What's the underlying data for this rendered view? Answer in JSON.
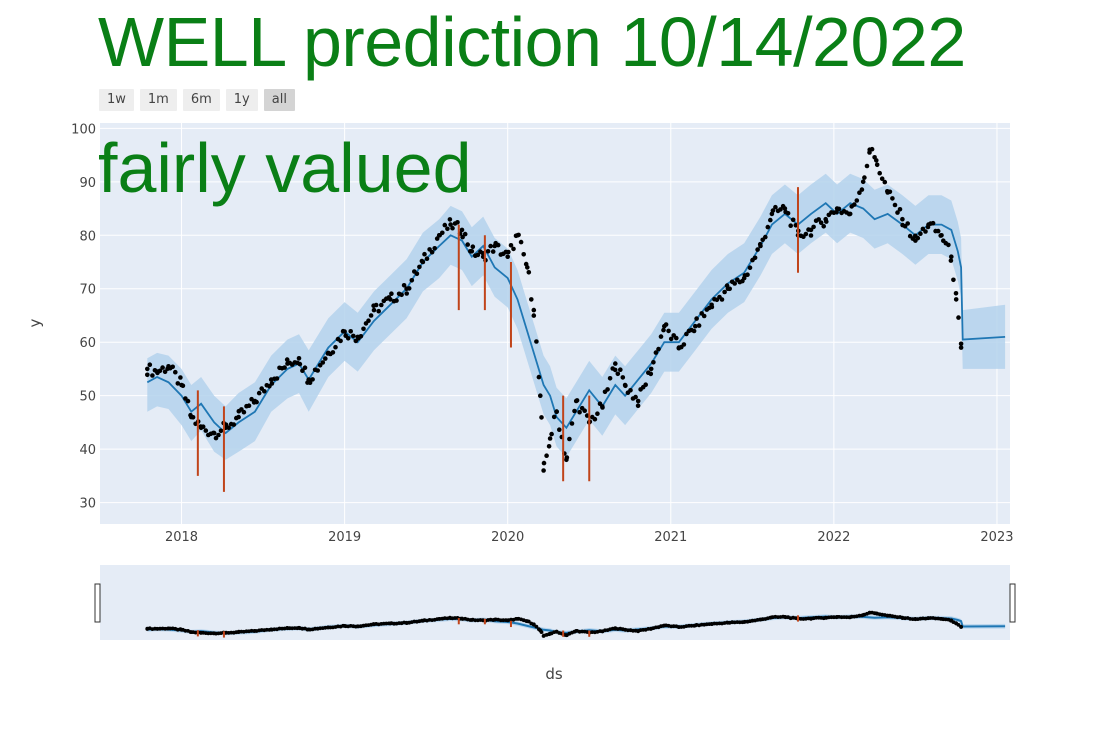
{
  "title": "WELL prediction 10/14/2022",
  "verdict": "fairly valued",
  "range_buttons": [
    {
      "label": "1w",
      "active": false
    },
    {
      "label": "1m",
      "active": false
    },
    {
      "label": "6m",
      "active": false
    },
    {
      "label": "1y",
      "active": false
    },
    {
      "label": "all",
      "active": true
    }
  ],
  "colors": {
    "title": "#0a7f16",
    "plot_bg": "#e5ecf6",
    "band": "#b4d2ec",
    "forecast_line": "#1f77b4",
    "actual_points": "#000000",
    "changepoints": "#c0441a"
  },
  "chart_data": {
    "type": "line",
    "xlabel": "ds",
    "ylabel": "y",
    "xlim": [
      2017.5,
      2023.08
    ],
    "ylim": [
      26,
      101
    ],
    "x_ticks": [
      "2018",
      "2019",
      "2020",
      "2021",
      "2022",
      "2023"
    ],
    "y_ticks": [
      "30",
      "40",
      "50",
      "60",
      "70",
      "80",
      "90",
      "100"
    ],
    "grid": true,
    "rangeslider": true,
    "forecast": {
      "name": "yhat",
      "x": [
        2017.79,
        2017.85,
        2017.92,
        2018.0,
        2018.06,
        2018.12,
        2018.2,
        2018.27,
        2018.35,
        2018.45,
        2018.55,
        2018.65,
        2018.72,
        2018.78,
        2018.9,
        2019.0,
        2019.08,
        2019.18,
        2019.28,
        2019.38,
        2019.48,
        2019.58,
        2019.65,
        2019.72,
        2019.78,
        2019.85,
        2019.92,
        2020.0,
        2020.06,
        2020.12,
        2020.18,
        2020.22,
        2020.26,
        2020.3,
        2020.36,
        2020.42,
        2020.5,
        2020.58,
        2020.66,
        2020.72,
        2020.8,
        2020.88,
        2020.96,
        2021.05,
        2021.15,
        2021.25,
        2021.35,
        2021.45,
        2021.55,
        2021.62,
        2021.7,
        2021.78,
        2021.86,
        2021.95,
        2022.02,
        2022.1,
        2022.18,
        2022.25,
        2022.33,
        2022.42,
        2022.5,
        2022.58,
        2022.66,
        2022.72,
        2022.76,
        2022.78,
        2022.79,
        2023.05
      ],
      "y": [
        52.5,
        53.5,
        52.5,
        50.0,
        47.0,
        48.5,
        45.0,
        43.0,
        45.0,
        47.0,
        52.0,
        55.0,
        56.0,
        53.0,
        59.0,
        62.0,
        60.0,
        64.0,
        67.0,
        70.0,
        75.0,
        78.0,
        80.0,
        79.0,
        76.0,
        78.0,
        74.0,
        72.0,
        68.0,
        62.0,
        56.0,
        52.0,
        50.0,
        46.0,
        44.0,
        47.0,
        51.0,
        48.0,
        52.0,
        50.0,
        53.0,
        56.0,
        60.0,
        60.0,
        64.0,
        68.0,
        71.0,
        73.0,
        78.0,
        82.0,
        84.0,
        82.0,
        84.0,
        86.0,
        84.0,
        86.0,
        85.0,
        83.0,
        84.0,
        82.0,
        80.0,
        82.0,
        82.0,
        81.0,
        77.0,
        74.0,
        60.5,
        61.0
      ]
    },
    "interval": {
      "name": "uncertainty interval",
      "x": [
        2017.79,
        2017.85,
        2017.92,
        2018.0,
        2018.06,
        2018.12,
        2018.2,
        2018.27,
        2018.35,
        2018.45,
        2018.55,
        2018.65,
        2018.72,
        2018.78,
        2018.9,
        2019.0,
        2019.08,
        2019.18,
        2019.28,
        2019.38,
        2019.48,
        2019.58,
        2019.65,
        2019.72,
        2019.78,
        2019.85,
        2019.92,
        2020.0,
        2020.06,
        2020.12,
        2020.18,
        2020.22,
        2020.26,
        2020.3,
        2020.36,
        2020.42,
        2020.5,
        2020.58,
        2020.66,
        2020.72,
        2020.8,
        2020.88,
        2020.96,
        2021.05,
        2021.15,
        2021.25,
        2021.35,
        2021.45,
        2021.55,
        2021.62,
        2021.7,
        2021.78,
        2021.86,
        2021.95,
        2022.02,
        2022.1,
        2022.18,
        2022.25,
        2022.33,
        2022.42,
        2022.5,
        2022.58,
        2022.66,
        2022.72,
        2022.76,
        2022.78,
        2022.79,
        2023.05
      ],
      "lower": [
        47.0,
        48.0,
        47.5,
        44.5,
        41.5,
        43.5,
        39.5,
        38.0,
        39.5,
        41.5,
        47.0,
        49.5,
        50.5,
        47.0,
        53.5,
        56.5,
        54.5,
        58.5,
        61.5,
        64.5,
        69.5,
        72.0,
        74.5,
        73.5,
        70.5,
        72.5,
        68.5,
        66.5,
        62.5,
        56.5,
        50.5,
        46.5,
        44.5,
        40.5,
        38.5,
        41.5,
        45.5,
        42.5,
        46.5,
        44.5,
        47.5,
        50.5,
        54.5,
        54.5,
        58.5,
        62.5,
        65.5,
        67.5,
        72.5,
        76.5,
        78.5,
        76.5,
        78.5,
        80.5,
        78.5,
        80.5,
        79.5,
        77.5,
        78.5,
        76.5,
        74.5,
        76.5,
        76.5,
        75.5,
        71.5,
        68.5,
        55.0,
        55.0
      ],
      "upper": [
        57.0,
        58.0,
        57.5,
        55.0,
        52.0,
        53.5,
        50.0,
        48.0,
        50.5,
        52.5,
        57.5,
        60.5,
        61.5,
        58.5,
        64.5,
        67.5,
        65.5,
        69.5,
        72.5,
        75.5,
        80.5,
        83.0,
        85.5,
        84.5,
        81.5,
        83.5,
        79.5,
        77.5,
        73.5,
        67.5,
        61.5,
        57.5,
        55.5,
        51.5,
        49.5,
        52.5,
        56.5,
        53.5,
        57.5,
        55.5,
        58.5,
        61.5,
        65.5,
        65.5,
        69.5,
        73.5,
        76.5,
        78.5,
        83.5,
        87.5,
        89.5,
        87.5,
        89.5,
        91.5,
        89.5,
        91.5,
        90.5,
        88.5,
        89.5,
        87.5,
        85.5,
        87.5,
        87.5,
        86.5,
        82.5,
        79.5,
        66.0,
        67.0
      ]
    },
    "actual": {
      "name": "y",
      "x": [
        2017.79,
        2017.85,
        2017.92,
        2018.0,
        2018.06,
        2018.12,
        2018.2,
        2018.27,
        2018.35,
        2018.45,
        2018.55,
        2018.65,
        2018.72,
        2018.78,
        2018.9,
        2019.0,
        2019.08,
        2019.18,
        2019.28,
        2019.38,
        2019.48,
        2019.58,
        2019.65,
        2019.72,
        2019.78,
        2019.85,
        2019.92,
        2020.0,
        2020.06,
        2020.12,
        2020.16,
        2020.2,
        2020.22,
        2020.26,
        2020.3,
        2020.36,
        2020.42,
        2020.5,
        2020.58,
        2020.66,
        2020.72,
        2020.8,
        2020.88,
        2020.96,
        2021.05,
        2021.15,
        2021.25,
        2021.35,
        2021.45,
        2021.55,
        2021.62,
        2021.7,
        2021.78,
        2021.86,
        2021.95,
        2022.02,
        2022.1,
        2022.18,
        2022.22,
        2022.26,
        2022.33,
        2022.42,
        2022.5,
        2022.58,
        2022.66,
        2022.72,
        2022.75,
        2022.78
      ],
      "y": [
        55.0,
        54.5,
        55.5,
        52.0,
        46.0,
        44.0,
        43.0,
        44.0,
        46.0,
        49.0,
        53.0,
        56.0,
        57.0,
        53.0,
        58.0,
        62.0,
        61.0,
        66.0,
        68.0,
        70.0,
        75.0,
        80.0,
        82.0,
        81.0,
        77.0,
        76.0,
        78.0,
        76.0,
        80.0,
        74.0,
        66.0,
        50.0,
        36.0,
        42.0,
        47.0,
        38.0,
        49.0,
        45.0,
        48.0,
        56.0,
        52.0,
        49.0,
        55.0,
        63.0,
        59.0,
        63.0,
        67.0,
        70.0,
        72.0,
        78.0,
        84.0,
        85.0,
        80.0,
        81.0,
        83.0,
        85.0,
        84.0,
        90.0,
        96.0,
        94.0,
        88.0,
        83.0,
        79.0,
        82.0,
        80.0,
        76.0,
        68.0,
        59.0
      ]
    },
    "changepoints": [
      {
        "x": 2018.1,
        "y0": 35,
        "y1": 51
      },
      {
        "x": 2018.26,
        "y0": 32,
        "y1": 48
      },
      {
        "x": 2019.7,
        "y0": 66,
        "y1": 82
      },
      {
        "x": 2019.86,
        "y0": 66,
        "y1": 80
      },
      {
        "x": 2020.02,
        "y0": 59,
        "y1": 75
      },
      {
        "x": 2020.34,
        "y0": 34,
        "y1": 50
      },
      {
        "x": 2020.5,
        "y0": 34,
        "y1": 50
      },
      {
        "x": 2021.78,
        "y0": 73,
        "y1": 89
      }
    ]
  }
}
